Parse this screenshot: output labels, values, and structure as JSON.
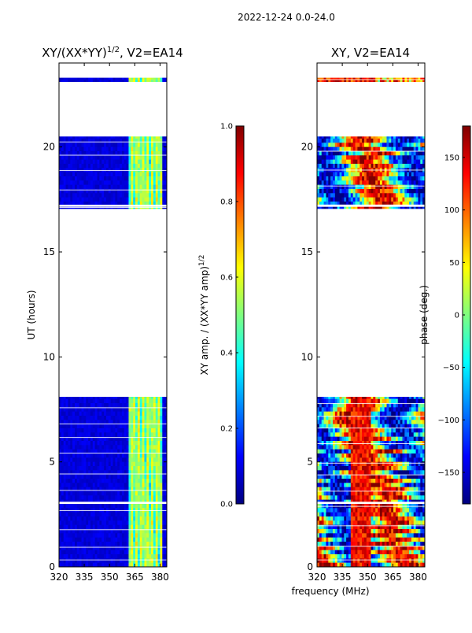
{
  "suptitle": "2022-12-24 0.0-24.0",
  "colors": {
    "jet": [
      "#00007f",
      "#0000ff",
      "#007fff",
      "#00ffff",
      "#7fff7f",
      "#ffff00",
      "#ff7f00",
      "#ff0000",
      "#7f0000"
    ]
  },
  "chart_data": [
    {
      "type": "heatmap",
      "title_main": "XY/(XX*YY)",
      "title_sup": "1/2",
      "title_rest": ", V2=EA14",
      "xlabel": "",
      "ylabel": "UT (hours)",
      "xlim": [
        320,
        384
      ],
      "ylim": [
        0,
        24
      ],
      "xticks": [
        "320",
        "335",
        "350",
        "365",
        "380"
      ],
      "xtick_values": [
        320,
        335,
        350,
        365,
        380
      ],
      "yticks": [
        "0",
        "5",
        "10",
        "15",
        "20"
      ],
      "ytick_values": [
        0,
        5,
        10,
        15,
        20
      ],
      "colorbar": {
        "label_main": "XY amp. / (XX*YY amp)",
        "label_sup": "1/2",
        "range": [
          0.0,
          1.0
        ],
        "ticks": [
          "0.0",
          "0.2",
          "0.4",
          "0.6",
          "0.8",
          "1.0"
        ],
        "tick_values": [
          0.0,
          0.2,
          0.4,
          0.6,
          0.8,
          1.0
        ]
      },
      "gaps_ut": [
        3.0,
        3.1,
        8.1,
        17.05,
        17.15,
        17.25,
        20.5,
        23.1,
        23.3,
        24.0
      ]
    },
    {
      "type": "heatmap",
      "title": "XY, V2=EA14",
      "xlabel": "frequency (MHz)",
      "ylabel": "",
      "xlim": [
        320,
        384
      ],
      "ylim": [
        0,
        24
      ],
      "xticks": [
        "320",
        "335",
        "350",
        "365",
        "380"
      ],
      "xtick_values": [
        320,
        335,
        350,
        365,
        380
      ],
      "yticks": [
        "0",
        "5",
        "10",
        "15",
        "20"
      ],
      "ytick_values": [
        0,
        5,
        10,
        15,
        20
      ],
      "colorbar": {
        "label": "phase (deg.)",
        "range": [
          -180,
          180
        ],
        "ticks": [
          "−150",
          "−100",
          "−50",
          "0",
          "50",
          "100",
          "150"
        ],
        "tick_values": [
          -150,
          -100,
          -50,
          0,
          50,
          100,
          150
        ]
      },
      "gaps_ut": [
        3.0,
        3.1,
        8.1,
        17.05,
        17.15,
        17.25,
        20.5,
        23.1,
        23.3,
        24.0
      ]
    }
  ]
}
